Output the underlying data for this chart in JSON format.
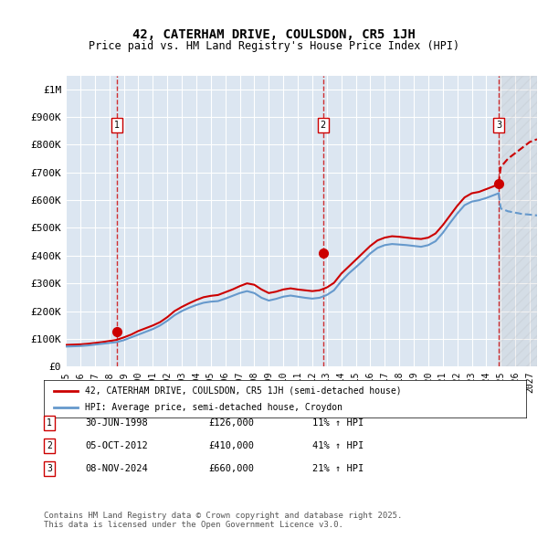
{
  "title1": "42, CATERHAM DRIVE, COULSDON, CR5 1JH",
  "title2": "Price paid vs. HM Land Registry's House Price Index (HPI)",
  "ylabel_ticks": [
    "£0",
    "£100K",
    "£200K",
    "£300K",
    "£400K",
    "£500K",
    "£600K",
    "£700K",
    "£800K",
    "£900K",
    "£1M"
  ],
  "ytick_values": [
    0,
    100000,
    200000,
    300000,
    400000,
    500000,
    600000,
    700000,
    800000,
    900000,
    1000000
  ],
  "ylim": [
    0,
    1050000
  ],
  "xlim_min": 1995.0,
  "xlim_max": 2027.5,
  "background_color": "#dce6f1",
  "plot_bg_color": "#dce6f1",
  "grid_color": "#ffffff",
  "red_line_color": "#cc0000",
  "blue_line_color": "#6699cc",
  "vline_color": "#cc0000",
  "marker_color_red": "#cc0000",
  "marker_color_blue": "#6699cc",
  "transaction_dates": [
    1998.5,
    2012.75,
    2024.85
  ],
  "transaction_prices": [
    126000,
    410000,
    660000
  ],
  "transaction_labels": [
    "1",
    "2",
    "3"
  ],
  "legend_line1": "42, CATERHAM DRIVE, COULSDON, CR5 1JH (semi-detached house)",
  "legend_line2": "HPI: Average price, semi-detached house, Croydon",
  "table_rows": [
    [
      "1",
      "30-JUN-1998",
      "£126,000",
      "11% ↑ HPI"
    ],
    [
      "2",
      "05-OCT-2012",
      "£410,000",
      "41% ↑ HPI"
    ],
    [
      "3",
      "08-NOV-2024",
      "£660,000",
      "21% ↑ HPI"
    ]
  ],
  "footer": "Contains HM Land Registry data © Crown copyright and database right 2025.\nThis data is licensed under the Open Government Licence v3.0.",
  "hatch_region_start": 2024.85,
  "hatch_region_end": 2027.5,
  "hpi_red_data": [
    [
      1995.0,
      78000
    ],
    [
      1995.5,
      79000
    ],
    [
      1996.0,
      80000
    ],
    [
      1996.5,
      82000
    ],
    [
      1997.0,
      85000
    ],
    [
      1997.5,
      88000
    ],
    [
      1998.0,
      92000
    ],
    [
      1998.5,
      96000
    ],
    [
      1999.0,
      105000
    ],
    [
      1999.5,
      115000
    ],
    [
      2000.0,
      128000
    ],
    [
      2000.5,
      138000
    ],
    [
      2001.0,
      148000
    ],
    [
      2001.5,
      160000
    ],
    [
      2002.0,
      178000
    ],
    [
      2002.5,
      200000
    ],
    [
      2003.0,
      215000
    ],
    [
      2003.5,
      228000
    ],
    [
      2004.0,
      240000
    ],
    [
      2004.5,
      250000
    ],
    [
      2005.0,
      255000
    ],
    [
      2005.5,
      258000
    ],
    [
      2006.0,
      268000
    ],
    [
      2006.5,
      278000
    ],
    [
      2007.0,
      290000
    ],
    [
      2007.5,
      300000
    ],
    [
      2008.0,
      295000
    ],
    [
      2008.5,
      278000
    ],
    [
      2009.0,
      265000
    ],
    [
      2009.5,
      270000
    ],
    [
      2010.0,
      278000
    ],
    [
      2010.5,
      282000
    ],
    [
      2011.0,
      278000
    ],
    [
      2011.5,
      275000
    ],
    [
      2012.0,
      272000
    ],
    [
      2012.5,
      275000
    ],
    [
      2013.0,
      285000
    ],
    [
      2013.5,
      302000
    ],
    [
      2014.0,
      335000
    ],
    [
      2014.5,
      360000
    ],
    [
      2015.0,
      385000
    ],
    [
      2015.5,
      410000
    ],
    [
      2016.0,
      435000
    ],
    [
      2016.5,
      455000
    ],
    [
      2017.0,
      465000
    ],
    [
      2017.5,
      470000
    ],
    [
      2018.0,
      468000
    ],
    [
      2018.5,
      465000
    ],
    [
      2019.0,
      462000
    ],
    [
      2019.5,
      460000
    ],
    [
      2020.0,
      465000
    ],
    [
      2020.5,
      480000
    ],
    [
      2021.0,
      510000
    ],
    [
      2021.5,
      545000
    ],
    [
      2022.0,
      580000
    ],
    [
      2022.5,
      610000
    ],
    [
      2023.0,
      625000
    ],
    [
      2023.5,
      630000
    ],
    [
      2024.0,
      640000
    ],
    [
      2024.5,
      650000
    ],
    [
      2024.85,
      660000
    ],
    [
      2025.0,
      720000
    ],
    [
      2025.5,
      750000
    ],
    [
      2026.0,
      770000
    ],
    [
      2026.5,
      790000
    ],
    [
      2027.0,
      810000
    ],
    [
      2027.5,
      820000
    ]
  ],
  "hpi_blue_data": [
    [
      1995.0,
      72000
    ],
    [
      1995.5,
      73000
    ],
    [
      1996.0,
      74000
    ],
    [
      1996.5,
      76000
    ],
    [
      1997.0,
      79000
    ],
    [
      1997.5,
      82000
    ],
    [
      1998.0,
      85000
    ],
    [
      1998.5,
      88000
    ],
    [
      1999.0,
      95000
    ],
    [
      1999.5,
      105000
    ],
    [
      2000.0,
      115000
    ],
    [
      2000.5,
      125000
    ],
    [
      2001.0,
      135000
    ],
    [
      2001.5,
      148000
    ],
    [
      2002.0,
      165000
    ],
    [
      2002.5,
      185000
    ],
    [
      2003.0,
      200000
    ],
    [
      2003.5,
      212000
    ],
    [
      2004.0,
      222000
    ],
    [
      2004.5,
      230000
    ],
    [
      2005.0,
      234000
    ],
    [
      2005.5,
      236000
    ],
    [
      2006.0,
      245000
    ],
    [
      2006.5,
      255000
    ],
    [
      2007.0,
      265000
    ],
    [
      2007.5,
      272000
    ],
    [
      2008.0,
      265000
    ],
    [
      2008.5,
      248000
    ],
    [
      2009.0,
      238000
    ],
    [
      2009.5,
      244000
    ],
    [
      2010.0,
      252000
    ],
    [
      2010.5,
      256000
    ],
    [
      2011.0,
      252000
    ],
    [
      2011.5,
      248000
    ],
    [
      2012.0,
      245000
    ],
    [
      2012.5,
      248000
    ],
    [
      2013.0,
      258000
    ],
    [
      2013.5,
      275000
    ],
    [
      2014.0,
      308000
    ],
    [
      2014.5,
      335000
    ],
    [
      2015.0,
      358000
    ],
    [
      2015.5,
      382000
    ],
    [
      2016.0,
      408000
    ],
    [
      2016.5,
      428000
    ],
    [
      2017.0,
      438000
    ],
    [
      2017.5,
      442000
    ],
    [
      2018.0,
      440000
    ],
    [
      2018.5,
      438000
    ],
    [
      2019.0,
      435000
    ],
    [
      2019.5,
      432000
    ],
    [
      2020.0,
      438000
    ],
    [
      2020.5,
      452000
    ],
    [
      2021.0,
      482000
    ],
    [
      2021.5,
      518000
    ],
    [
      2022.0,
      552000
    ],
    [
      2022.5,
      582000
    ],
    [
      2023.0,
      595000
    ],
    [
      2023.5,
      600000
    ],
    [
      2024.0,
      608000
    ],
    [
      2024.5,
      618000
    ],
    [
      2024.85,
      625000
    ],
    [
      2025.0,
      570000
    ],
    [
      2025.5,
      560000
    ],
    [
      2026.0,
      555000
    ],
    [
      2026.5,
      550000
    ],
    [
      2027.0,
      548000
    ],
    [
      2027.5,
      545000
    ]
  ]
}
